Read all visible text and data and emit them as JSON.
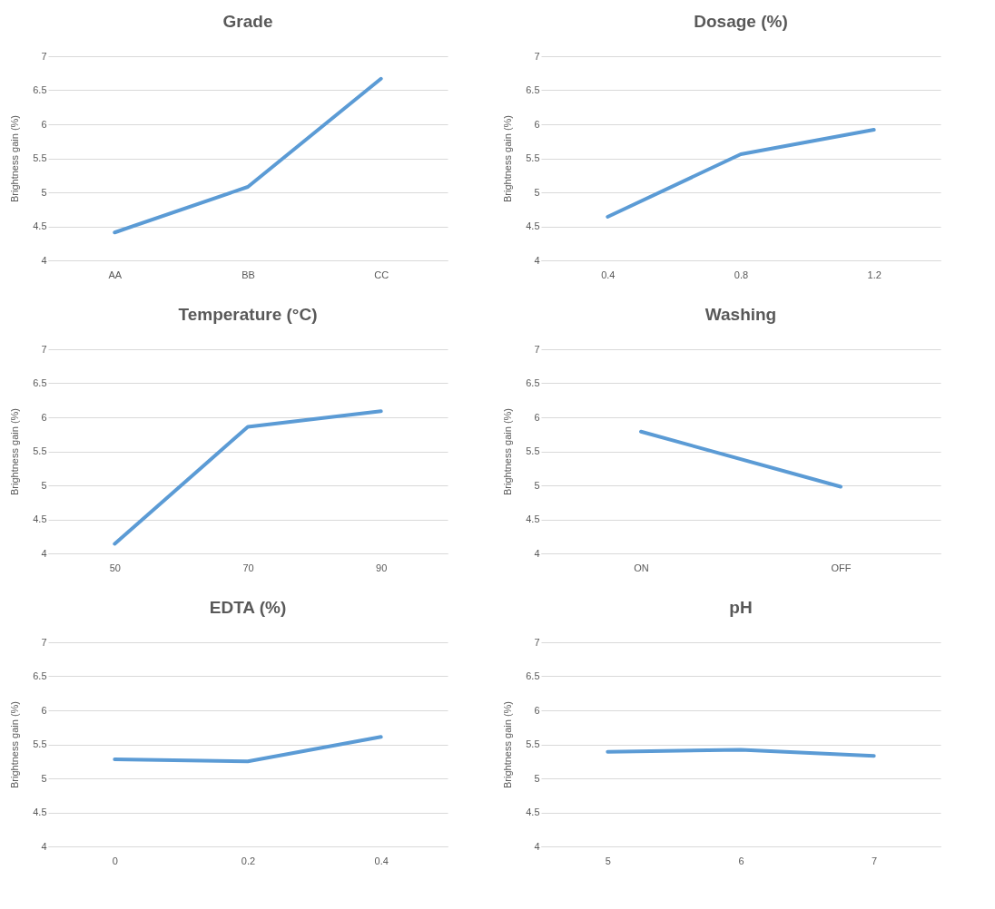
{
  "chart_data": [
    {
      "type": "line",
      "title": "Grade",
      "ylabel": "Brightness gain (%)",
      "categories": [
        "AA",
        "BB",
        "CC"
      ],
      "values": [
        4.41,
        5.08,
        6.67
      ],
      "color": "#5b9bd5",
      "ylim": [
        4,
        7
      ],
      "yticks": [
        4,
        4.5,
        5,
        5.5,
        6,
        6.5,
        7
      ],
      "grid": "y"
    },
    {
      "type": "line",
      "title": "Dosage (%)",
      "ylabel": "Brightness gain (%)",
      "categories": [
        "0.4",
        "0.8",
        "1.2"
      ],
      "values": [
        4.64,
        5.56,
        5.92
      ],
      "color": "#5b9bd5",
      "ylim": [
        4,
        7
      ],
      "yticks": [
        4,
        4.5,
        5,
        5.5,
        6,
        6.5,
        7
      ],
      "grid": "y"
    },
    {
      "type": "line",
      "title": "Temperature (°C)",
      "ylabel": "Brightness gain (%)",
      "categories": [
        "50",
        "70",
        "90"
      ],
      "values": [
        4.14,
        5.86,
        6.09
      ],
      "color": "#5b9bd5",
      "ylim": [
        4,
        7
      ],
      "yticks": [
        4,
        4.5,
        5,
        5.5,
        6,
        6.5,
        7
      ],
      "grid": "y"
    },
    {
      "type": "line",
      "title": "Washing",
      "ylabel": "Brightness gain (%)",
      "categories": [
        "ON",
        "OFF"
      ],
      "values": [
        5.79,
        4.98
      ],
      "color": "#5b9bd5",
      "ylim": [
        4,
        7
      ],
      "yticks": [
        4,
        4.5,
        5,
        5.5,
        6,
        6.5,
        7
      ],
      "grid": "y"
    },
    {
      "type": "line",
      "title": "EDTA (%)",
      "ylabel": "Brightness gain (%)",
      "categories": [
        "0",
        "0.2",
        "0.4"
      ],
      "values": [
        5.28,
        5.25,
        5.61
      ],
      "color": "#5b9bd5",
      "ylim": [
        4,
        7
      ],
      "yticks": [
        4,
        4.5,
        5,
        5.5,
        6,
        6.5,
        7
      ],
      "grid": "y"
    },
    {
      "type": "line",
      "title": "pH",
      "ylabel": "Brightness gain (%)",
      "categories": [
        "5",
        "6",
        "7"
      ],
      "values": [
        5.39,
        5.42,
        5.33
      ],
      "color": "#5b9bd5",
      "ylim": [
        4,
        7
      ],
      "yticks": [
        4,
        4.5,
        5,
        5.5,
        6,
        6.5,
        7
      ],
      "grid": "y"
    }
  ]
}
